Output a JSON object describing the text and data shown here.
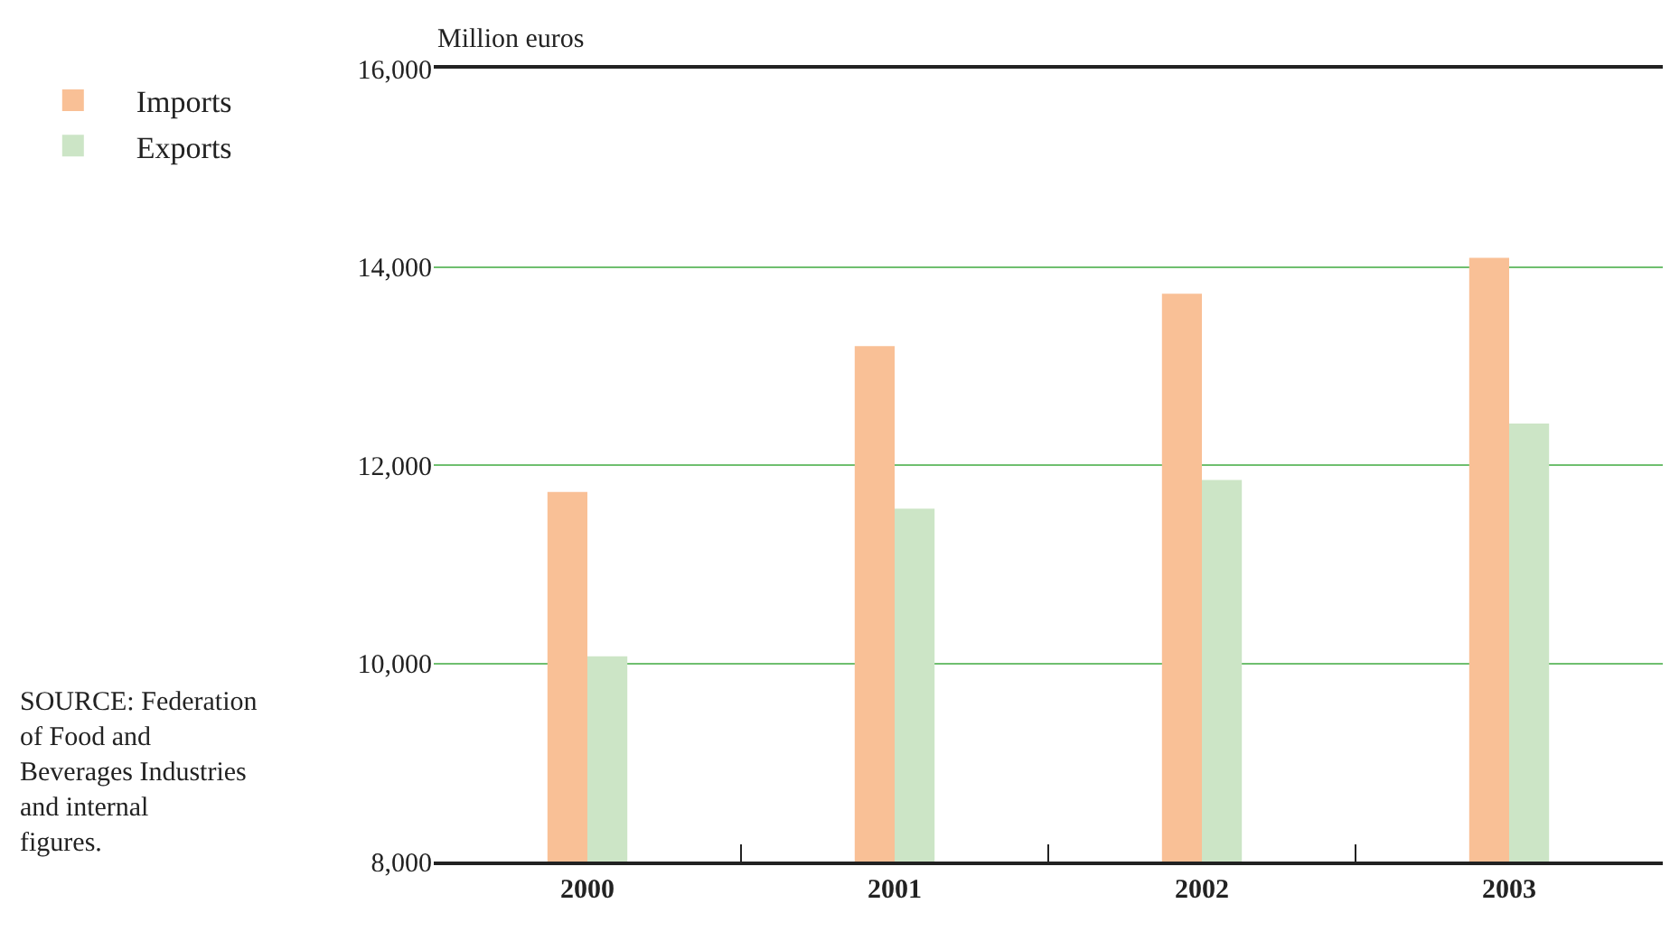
{
  "chart_data": {
    "type": "bar",
    "ylabel": "Million euros",
    "categories": [
      "2000",
      "2001",
      "2002",
      "2003"
    ],
    "series": [
      {
        "name": "Imports",
        "color": "#f9c096",
        "values": [
          11730,
          13200,
          13730,
          14090
        ]
      },
      {
        "name": "Exports",
        "color": "#cce5c6",
        "values": [
          10070,
          11560,
          11850,
          12420
        ]
      }
    ],
    "ylim": [
      8000,
      16000
    ],
    "yticks": [
      {
        "value": 8000,
        "label": "8,000"
      },
      {
        "value": 10000,
        "label": "10,000"
      },
      {
        "value": 12000,
        "label": "12,000"
      },
      {
        "value": 14000,
        "label": "14,000"
      },
      {
        "value": 16000,
        "label": "16,000"
      }
    ],
    "grid": "y",
    "legend": "top left",
    "annotations": [
      "SOURCE: Federation of Food and Beverages Industries and internal figures."
    ]
  }
}
